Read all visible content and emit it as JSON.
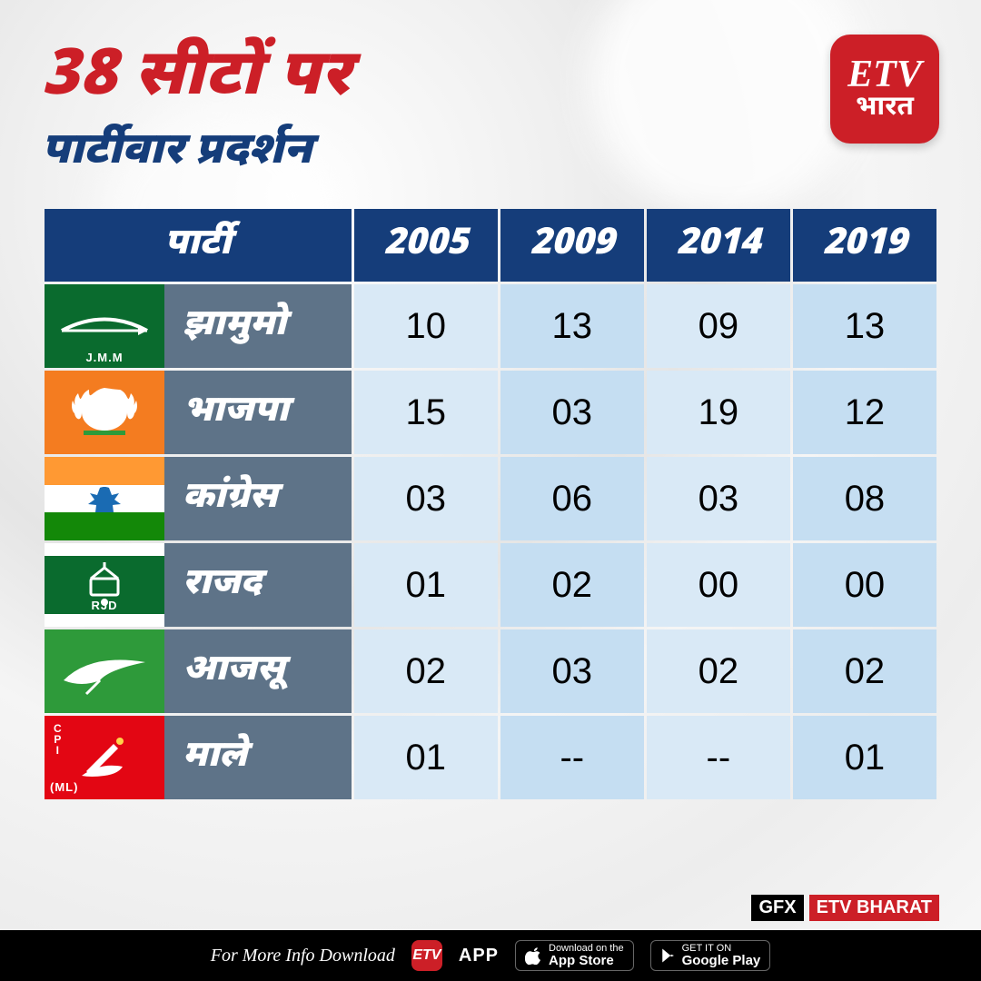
{
  "background_color": "#efefef",
  "title_line1": "38 सीटों पर",
  "title_line2": "पार्टीवार प्रदर्शन",
  "title_line1_color": "#cc1f27",
  "title_line2_color": "#153d7a",
  "logo": {
    "top": "ETV",
    "bottom": "भारत",
    "bg": "#cc1f27"
  },
  "table": {
    "type": "table",
    "header_bg": "#153d7a",
    "header_fg": "#ffffff",
    "cell_bg_a": "#d9e9f6",
    "cell_bg_b": "#c5def2",
    "party_name_bg": "#5e7388",
    "party_name_fg": "#ffffff",
    "columns": [
      {
        "key": "party",
        "label": "पार्टी"
      },
      {
        "key": "y2005",
        "label": "2005"
      },
      {
        "key": "y2009",
        "label": "2009"
      },
      {
        "key": "y2014",
        "label": "2014"
      },
      {
        "key": "y2019",
        "label": "2019"
      }
    ],
    "rows": [
      {
        "flag": {
          "bg": "#0a6b2e",
          "kind": "jmm",
          "sublabel": "J.M.M"
        },
        "name": "झामुमो",
        "cells": [
          "10",
          "13",
          "09",
          "13"
        ]
      },
      {
        "flag": {
          "bg": "#f47c20",
          "kind": "bjp",
          "sublabel": ""
        },
        "name": "भाजपा",
        "cells": [
          "15",
          "03",
          "19",
          "12"
        ]
      },
      {
        "flag": {
          "bg": "tricolor",
          "kind": "inc",
          "sublabel": ""
        },
        "name": "कांग्रेस",
        "cells": [
          "03",
          "06",
          "03",
          "08"
        ]
      },
      {
        "flag": {
          "bg": "#0a6b2e",
          "kind": "rjd",
          "sublabel": "RJD"
        },
        "name": "राजद",
        "cells": [
          "01",
          "02",
          "00",
          "00"
        ]
      },
      {
        "flag": {
          "bg": "#2e9a3a",
          "kind": "ajsu",
          "sublabel": ""
        },
        "name": "आजसू",
        "cells": [
          "02",
          "03",
          "02",
          "02"
        ]
      },
      {
        "flag": {
          "bg": "#e30613",
          "kind": "cpiml",
          "sublabel": "(ML)",
          "toplabel": "CPI"
        },
        "name": "माले",
        "cells": [
          "01",
          "--",
          "--",
          "01"
        ]
      }
    ]
  },
  "footer": {
    "info": "For More Info Download",
    "app": "APP",
    "appstore_small": "Download on the",
    "appstore_big": "App Store",
    "play_small": "GET IT ON",
    "play_big": "Google Play"
  },
  "gfx": {
    "label1": "GFX",
    "label2": "ETV BHARAT",
    "label2_bg": "#cc1f27"
  }
}
